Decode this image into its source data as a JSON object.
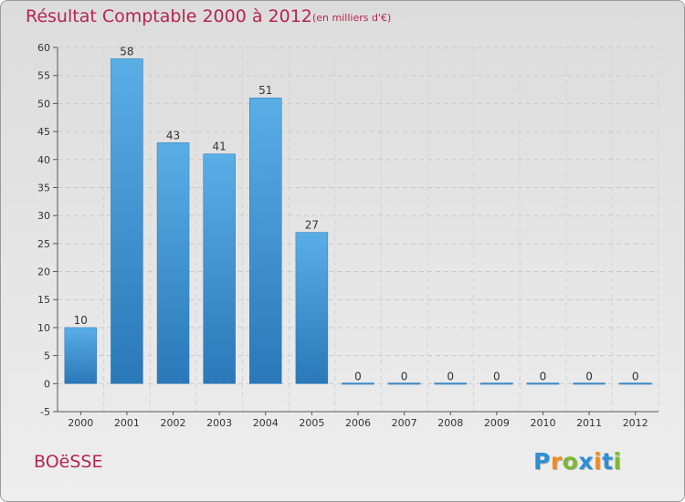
{
  "header": {
    "title": "Résultat Comptable 2000 à 2012",
    "unit_note": "(en milliers d'€)"
  },
  "commune": "BOëSSE",
  "brand": {
    "letters": [
      "P",
      "r",
      "o",
      "x",
      "i",
      "t",
      "i"
    ],
    "colors": [
      "#2a8fd4",
      "#f28c1e",
      "#7cb832",
      "#2a8fd4",
      "#f28c1e",
      "#2a8fd4",
      "#7cb832"
    ]
  },
  "chart_data": {
    "type": "bar",
    "title": "Résultat Comptable 2000 à 2012",
    "categories": [
      "2000",
      "2001",
      "2002",
      "2003",
      "2004",
      "2005",
      "2006",
      "2007",
      "2008",
      "2009",
      "2010",
      "2011",
      "2012"
    ],
    "values": [
      10,
      58,
      43,
      41,
      51,
      27,
      0,
      0,
      0,
      0,
      0,
      0,
      0
    ],
    "data_labels": [
      "10",
      "58",
      "43",
      "41",
      "51",
      "27",
      "0",
      "0",
      "0",
      "0",
      "0",
      "0",
      "0"
    ],
    "ylim": [
      -5,
      60
    ],
    "yticks": [
      -5,
      0,
      5,
      10,
      15,
      20,
      25,
      30,
      35,
      40,
      45,
      50,
      55,
      60
    ],
    "grid": true,
    "bar_color": "#4c9fdc",
    "bar_color_dark": "#2a78b8"
  }
}
